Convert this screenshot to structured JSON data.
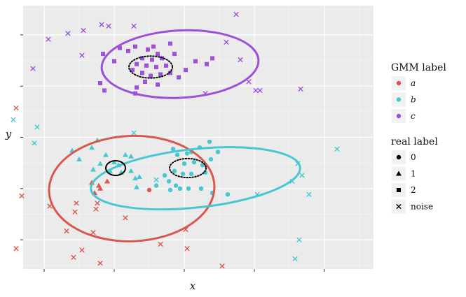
{
  "chart_data": {
    "type": "scatter",
    "xlabel": "x",
    "ylabel": "y",
    "xlim": [
      -6.5,
      18.5
    ],
    "ylim": [
      -7,
      11
    ],
    "x_ticks": [
      -5,
      0,
      5,
      10,
      15
    ],
    "y_ticks": [
      -5,
      -1.5,
      2,
      5.5,
      9
    ],
    "show_tick_labels": false,
    "grid": true,
    "legends": [
      {
        "title": "GMM label",
        "entries": [
          {
            "label": "a",
            "color": "#d9584e"
          },
          {
            "label": "b",
            "color": "#47c7d1"
          },
          {
            "label": "c",
            "color": "#9d51d9"
          }
        ]
      },
      {
        "title": "real label",
        "entries": [
          {
            "label": "0",
            "shape": "circle"
          },
          {
            "label": "1",
            "shape": "triangle"
          },
          {
            "label": "2",
            "shape": "square"
          },
          {
            "label": "noise",
            "shape": "cross"
          }
        ]
      }
    ],
    "gmm_ellipses": [
      {
        "label": "a",
        "color": "#d9584e",
        "cx": 1.25,
        "cy": -1.5,
        "rx": 5.9,
        "ry": 3.6,
        "angle_deg": -2
      },
      {
        "label": "b",
        "color": "#47c7d1",
        "cx": 5.8,
        "cy": -0.8,
        "rx": 7.5,
        "ry": 2.0,
        "angle_deg": -6
      },
      {
        "label": "c",
        "color": "#9d51d9",
        "cx": 4.7,
        "cy": 7.0,
        "rx": 5.6,
        "ry": 2.3,
        "angle_deg": -3
      }
    ],
    "true_ellipses": [
      {
        "cx": 2.6,
        "cy": 6.8,
        "rx": 1.55,
        "ry": 0.75,
        "angle_deg": 0,
        "style": "dotted"
      },
      {
        "cx": 5.25,
        "cy": -0.1,
        "rx": 1.3,
        "ry": 0.65,
        "angle_deg": 0,
        "style": "dotted"
      },
      {
        "cx": 0.1,
        "cy": -0.1,
        "rx": 0.7,
        "ry": 0.5,
        "angle_deg": 0,
        "style": "solid"
      }
    ],
    "points": [
      {
        "x": 2.4,
        "y": 8.0,
        "gmm": "c",
        "real": "2"
      },
      {
        "x": 2.8,
        "y": 8.2,
        "gmm": "c",
        "real": "2"
      },
      {
        "x": 3.1,
        "y": 7.7,
        "gmm": "c",
        "real": "2"
      },
      {
        "x": 2.0,
        "y": 7.4,
        "gmm": "c",
        "real": "2"
      },
      {
        "x": 2.7,
        "y": 7.3,
        "gmm": "c",
        "real": "2"
      },
      {
        "x": 3.4,
        "y": 7.4,
        "gmm": "c",
        "real": "2"
      },
      {
        "x": 1.6,
        "y": 7.0,
        "gmm": "c",
        "real": "2"
      },
      {
        "x": 2.3,
        "y": 6.9,
        "gmm": "c",
        "real": "2"
      },
      {
        "x": 3.0,
        "y": 6.8,
        "gmm": "c",
        "real": "2"
      },
      {
        "x": 3.7,
        "y": 6.9,
        "gmm": "c",
        "real": "2"
      },
      {
        "x": 1.3,
        "y": 6.6,
        "gmm": "c",
        "real": "2"
      },
      {
        "x": 2.0,
        "y": 6.4,
        "gmm": "c",
        "real": "2"
      },
      {
        "x": 2.6,
        "y": 6.2,
        "gmm": "c",
        "real": "2"
      },
      {
        "x": 3.3,
        "y": 6.3,
        "gmm": "c",
        "real": "2"
      },
      {
        "x": 4.0,
        "y": 6.4,
        "gmm": "c",
        "real": "2"
      },
      {
        "x": 1.0,
        "y": 7.9,
        "gmm": "c",
        "real": "2"
      },
      {
        "x": 1.5,
        "y": 8.2,
        "gmm": "c",
        "real": "2"
      },
      {
        "x": 0.4,
        "y": 8.1,
        "gmm": "c",
        "real": "2"
      },
      {
        "x": -0.8,
        "y": 7.7,
        "gmm": "c",
        "real": "2"
      },
      {
        "x": 0.0,
        "y": 7.2,
        "gmm": "c",
        "real": "2"
      },
      {
        "x": 4.3,
        "y": 7.7,
        "gmm": "c",
        "real": "2"
      },
      {
        "x": 5.1,
        "y": 6.6,
        "gmm": "c",
        "real": "2"
      },
      {
        "x": 5.8,
        "y": 7.2,
        "gmm": "c",
        "real": "2"
      },
      {
        "x": 6.6,
        "y": 7.0,
        "gmm": "c",
        "real": "2"
      },
      {
        "x": 7.0,
        "y": 7.4,
        "gmm": "c",
        "real": "2"
      },
      {
        "x": 4.6,
        "y": 6.1,
        "gmm": "c",
        "real": "2"
      },
      {
        "x": 2.2,
        "y": 5.8,
        "gmm": "c",
        "real": "2"
      },
      {
        "x": 3.1,
        "y": 5.6,
        "gmm": "c",
        "real": "2"
      },
      {
        "x": -1.0,
        "y": 5.7,
        "gmm": "c",
        "real": "2"
      },
      {
        "x": -0.7,
        "y": 5.2,
        "gmm": "c",
        "real": "2"
      },
      {
        "x": 1.6,
        "y": 5.4,
        "gmm": "c",
        "real": "2"
      },
      {
        "x": 1.5,
        "y": 5.0,
        "gmm": "c",
        "real": "2"
      },
      {
        "x": 4.0,
        "y": 8.4,
        "gmm": "c",
        "real": "2"
      },
      {
        "x": 0.0,
        "y": 0.3,
        "gmm": "b",
        "real": "1"
      },
      {
        "x": 0.3,
        "y": 0.1,
        "gmm": "b",
        "real": "1"
      },
      {
        "x": -0.3,
        "y": -0.3,
        "gmm": "b",
        "real": "1"
      },
      {
        "x": 0.5,
        "y": -0.4,
        "gmm": "b",
        "real": "1"
      },
      {
        "x": -1.0,
        "y": 0.2,
        "gmm": "b",
        "real": "1"
      },
      {
        "x": -1.6,
        "y": 1.3,
        "gmm": "b",
        "real": "1"
      },
      {
        "x": -3.0,
        "y": 1.1,
        "gmm": "b",
        "real": "1"
      },
      {
        "x": -1.2,
        "y": 1.8,
        "gmm": "b",
        "real": "1"
      },
      {
        "x": -1.5,
        "y": -0.2,
        "gmm": "b",
        "real": "1"
      },
      {
        "x": 1.2,
        "y": 0.7,
        "gmm": "b",
        "real": "1"
      },
      {
        "x": 1.2,
        "y": -0.3,
        "gmm": "b",
        "real": "1"
      },
      {
        "x": 1.5,
        "y": -0.8,
        "gmm": "b",
        "real": "1"
      },
      {
        "x": 1.8,
        "y": -0.7,
        "gmm": "b",
        "real": "1"
      },
      {
        "x": 1.6,
        "y": -1.4,
        "gmm": "b",
        "real": "1"
      },
      {
        "x": -2.5,
        "y": 0.5,
        "gmm": "b",
        "real": "1"
      },
      {
        "x": 0.8,
        "y": 0.8,
        "gmm": "b",
        "real": "1"
      },
      {
        "x": -0.6,
        "y": 0.8,
        "gmm": "b",
        "real": "1"
      },
      {
        "x": 5.2,
        "y": 0.9,
        "gmm": "b",
        "real": "0"
      },
      {
        "x": 5.5,
        "y": 1.0,
        "gmm": "b",
        "real": "0"
      },
      {
        "x": 6.1,
        "y": 1.3,
        "gmm": "b",
        "real": "0"
      },
      {
        "x": 4.2,
        "y": 1.2,
        "gmm": "b",
        "real": "0"
      },
      {
        "x": 4.5,
        "y": 0.8,
        "gmm": "b",
        "real": "0"
      },
      {
        "x": 5.0,
        "y": 0.2,
        "gmm": "b",
        "real": "0"
      },
      {
        "x": 5.7,
        "y": 0.3,
        "gmm": "b",
        "real": "0"
      },
      {
        "x": 6.3,
        "y": 0.1,
        "gmm": "b",
        "real": "0"
      },
      {
        "x": 4.3,
        "y": -0.3,
        "gmm": "b",
        "real": "0"
      },
      {
        "x": 4.9,
        "y": -0.5,
        "gmm": "b",
        "real": "0"
      },
      {
        "x": 5.5,
        "y": -0.5,
        "gmm": "b",
        "real": "0"
      },
      {
        "x": 6.5,
        "y": -0.4,
        "gmm": "b",
        "real": "0"
      },
      {
        "x": 6.9,
        "y": 0.5,
        "gmm": "b",
        "real": "0"
      },
      {
        "x": 7.4,
        "y": 1.0,
        "gmm": "b",
        "real": "0"
      },
      {
        "x": 3.6,
        "y": -0.6,
        "gmm": "b",
        "real": "0"
      },
      {
        "x": 3.9,
        "y": -1.0,
        "gmm": "b",
        "real": "0"
      },
      {
        "x": 4.4,
        "y": -1.3,
        "gmm": "b",
        "real": "0"
      },
      {
        "x": 4.0,
        "y": -1.6,
        "gmm": "b",
        "real": "0"
      },
      {
        "x": 4.7,
        "y": -1.5,
        "gmm": "b",
        "real": "0"
      },
      {
        "x": 5.3,
        "y": -1.5,
        "gmm": "b",
        "real": "0"
      },
      {
        "x": 6.2,
        "y": -1.5,
        "gmm": "b",
        "real": "0"
      },
      {
        "x": 7.0,
        "y": -1.8,
        "gmm": "b",
        "real": "0"
      },
      {
        "x": 8.1,
        "y": -1.9,
        "gmm": "b",
        "real": "0"
      },
      {
        "x": 3.0,
        "y": -1.3,
        "gmm": "b",
        "real": "0"
      },
      {
        "x": 2.5,
        "y": -1.6,
        "gmm": "a",
        "real": "0"
      },
      {
        "x": 6.8,
        "y": 1.7,
        "gmm": "b",
        "real": "0"
      },
      {
        "x": -1.1,
        "y": -1.3,
        "gmm": "a",
        "real": "1"
      },
      {
        "x": -1.6,
        "y": -1.1,
        "gmm": "a",
        "real": "1"
      },
      {
        "x": -1.0,
        "y": -1.5,
        "gmm": "a",
        "real": "1"
      },
      {
        "x": -0.5,
        "y": -1.0,
        "gmm": "a",
        "real": "1"
      },
      {
        "x": -1.4,
        "y": -1.8,
        "gmm": "a",
        "real": "1"
      },
      {
        "x": -4.7,
        "y": 8.7,
        "gmm": "c",
        "real": "noise"
      },
      {
        "x": -3.3,
        "y": 9.1,
        "gmm": "c",
        "real": "noise"
      },
      {
        "x": -2.2,
        "y": 9.3,
        "gmm": "c",
        "real": "noise"
      },
      {
        "x": -0.9,
        "y": 9.7,
        "gmm": "c",
        "real": "noise"
      },
      {
        "x": -0.4,
        "y": 9.6,
        "gmm": "c",
        "real": "noise"
      },
      {
        "x": 1.4,
        "y": 9.6,
        "gmm": "c",
        "real": "noise"
      },
      {
        "x": -2.3,
        "y": 7.6,
        "gmm": "c",
        "real": "noise"
      },
      {
        "x": -5.8,
        "y": 6.7,
        "gmm": "c",
        "real": "noise"
      },
      {
        "x": 8.7,
        "y": 10.4,
        "gmm": "c",
        "real": "noise"
      },
      {
        "x": 8.0,
        "y": 8.5,
        "gmm": "c",
        "real": "noise"
      },
      {
        "x": 9.0,
        "y": 7.3,
        "gmm": "c",
        "real": "noise"
      },
      {
        "x": 9.6,
        "y": 5.8,
        "gmm": "c",
        "real": "noise"
      },
      {
        "x": 10.1,
        "y": 5.2,
        "gmm": "c",
        "real": "noise"
      },
      {
        "x": 10.4,
        "y": 5.2,
        "gmm": "c",
        "real": "noise"
      },
      {
        "x": 13.3,
        "y": 5.3,
        "gmm": "c",
        "real": "noise"
      },
      {
        "x": 6.5,
        "y": 5.0,
        "gmm": "c",
        "real": "noise"
      },
      {
        "x": -7.2,
        "y": 3.2,
        "gmm": "b",
        "real": "noise"
      },
      {
        "x": -5.5,
        "y": 2.7,
        "gmm": "b",
        "real": "noise"
      },
      {
        "x": -5.7,
        "y": 1.6,
        "gmm": "b",
        "real": "noise"
      },
      {
        "x": 1.4,
        "y": 2.3,
        "gmm": "b",
        "real": "noise"
      },
      {
        "x": 3.0,
        "y": -0.9,
        "gmm": "b",
        "real": "noise"
      },
      {
        "x": 10.2,
        "y": -1.9,
        "gmm": "b",
        "real": "noise"
      },
      {
        "x": 12.7,
        "y": -1.0,
        "gmm": "b",
        "real": "noise"
      },
      {
        "x": 13.1,
        "y": 0.2,
        "gmm": "b",
        "real": "noise"
      },
      {
        "x": 13.4,
        "y": -0.6,
        "gmm": "b",
        "real": "noise"
      },
      {
        "x": 13.9,
        "y": -1.9,
        "gmm": "b",
        "real": "noise"
      },
      {
        "x": 15.9,
        "y": 1.2,
        "gmm": "b",
        "real": "noise"
      },
      {
        "x": 13.2,
        "y": -5.0,
        "gmm": "b",
        "real": "noise"
      },
      {
        "x": 12.9,
        "y": -6.3,
        "gmm": "b",
        "real": "noise"
      },
      {
        "x": -7.0,
        "y": 4.0,
        "gmm": "a",
        "real": "noise"
      },
      {
        "x": -6.6,
        "y": -2.0,
        "gmm": "a",
        "real": "noise"
      },
      {
        "x": -7.0,
        "y": -5.6,
        "gmm": "a",
        "real": "noise"
      },
      {
        "x": -4.6,
        "y": -2.7,
        "gmm": "a",
        "real": "noise"
      },
      {
        "x": -2.7,
        "y": -2.5,
        "gmm": "a",
        "real": "noise"
      },
      {
        "x": -2.8,
        "y": -3.1,
        "gmm": "a",
        "real": "noise"
      },
      {
        "x": -3.4,
        "y": -4.4,
        "gmm": "a",
        "real": "noise"
      },
      {
        "x": -1.2,
        "y": -2.5,
        "gmm": "a",
        "real": "noise"
      },
      {
        "x": -1.3,
        "y": -2.9,
        "gmm": "a",
        "real": "noise"
      },
      {
        "x": -1.5,
        "y": -4.5,
        "gmm": "a",
        "real": "noise"
      },
      {
        "x": 0.8,
        "y": -3.5,
        "gmm": "a",
        "real": "noise"
      },
      {
        "x": 3.3,
        "y": -5.3,
        "gmm": "a",
        "real": "noise"
      },
      {
        "x": 5.1,
        "y": -4.3,
        "gmm": "a",
        "real": "noise"
      },
      {
        "x": 5.2,
        "y": -5.6,
        "gmm": "a",
        "real": "noise"
      },
      {
        "x": -2.3,
        "y": -5.7,
        "gmm": "a",
        "real": "noise"
      },
      {
        "x": -2.9,
        "y": -6.2,
        "gmm": "a",
        "real": "noise"
      },
      {
        "x": -1.0,
        "y": -6.6,
        "gmm": "a",
        "real": "noise"
      },
      {
        "x": 7.7,
        "y": -6.8,
        "gmm": "a",
        "real": "noise"
      }
    ]
  }
}
